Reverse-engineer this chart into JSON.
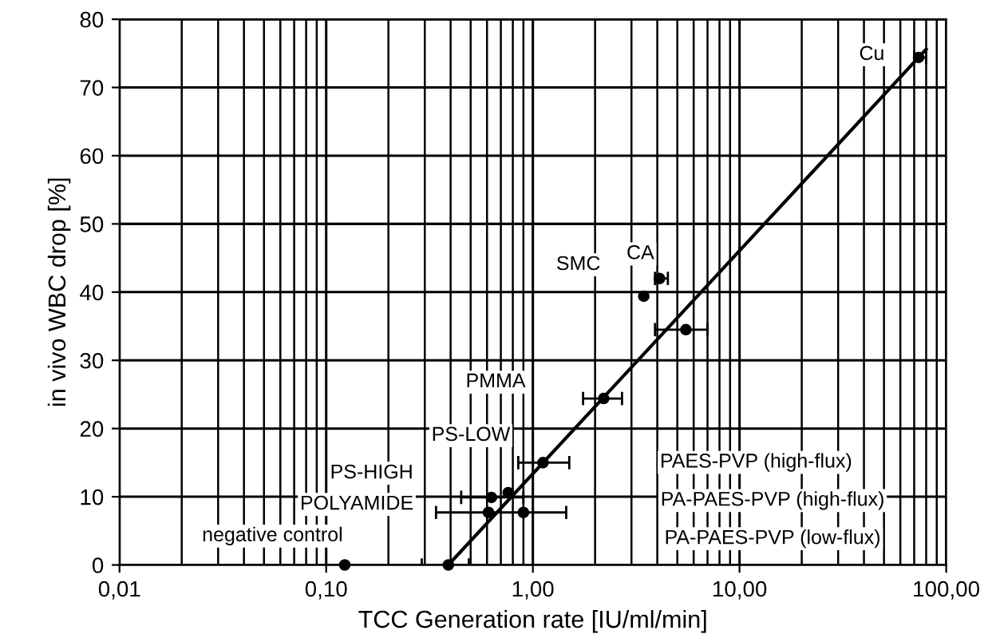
{
  "chart_data": {
    "type": "scatter",
    "xlabel": "TCC Generation rate [IU/ml/min]",
    "ylabel": "in vivo WBC drop [%]",
    "log": "x",
    "grid": true,
    "marker": "circle",
    "xlim": [
      0.01,
      100
    ],
    "xticks": [
      {
        "value": 0.01,
        "label": "0,01"
      },
      {
        "value": 0.1,
        "label": "0,10"
      },
      {
        "value": 1,
        "label": "1,00"
      },
      {
        "value": 10,
        "label": "10,00"
      },
      {
        "value": 100,
        "label": "100,00"
      }
    ],
    "ylim": [
      0,
      80
    ],
    "yticks": [
      0,
      10,
      20,
      30,
      40,
      50,
      60,
      70,
      80
    ],
    "series": [
      {
        "type": "line",
        "color": "#000000",
        "marker": "none",
        "x": [
          0.39,
          80
        ],
        "values": [
          0,
          75.6
        ]
      },
      {
        "color": "#000000",
        "x": [
          0.123,
          0.39,
          0.61,
          0.9,
          0.63,
          0.76,
          1.12,
          2.2,
          3.44,
          4.1,
          5.5,
          73.5
        ],
        "values": [
          0,
          0,
          7.7,
          7.7,
          9.9,
          10.6,
          15.0,
          24.4,
          39.4,
          42,
          34.5,
          74.4
        ],
        "xerrors": [
          null,
          [
            0.29,
            0.49
          ],
          [
            0.34,
            1.45
          ],
          null,
          [
            0.45,
            0.9
          ],
          null,
          [
            0.85,
            1.5
          ],
          [
            1.75,
            2.7
          ],
          null,
          [
            3.9,
            4.5
          ],
          [
            3.9,
            7.0
          ],
          [
            70,
            80
          ]
        ]
      }
    ],
    "annotations": [
      "Cu",
      "CA",
      "SMC",
      "PMMA",
      "PS-LOW",
      "PS-HIGH",
      "POLYAMIDE",
      "negative control",
      "PAES-PVP (high-flux)",
      "PA-PAES-PVP (high-flux)",
      "PA-PAES-PVP (low-flux)"
    ]
  }
}
